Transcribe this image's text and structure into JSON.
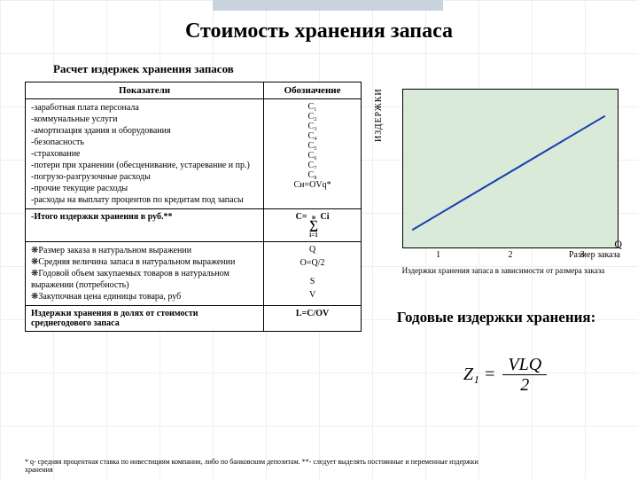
{
  "title": "Стоимость хранения запаса",
  "subtitle": "Расчет издержек хранения запасов",
  "table": {
    "header": {
      "col1": "Показатели",
      "col2": "Обозначение"
    },
    "block1": {
      "items": [
        "-заработная плата персонала",
        "-коммунальные услуги",
        "-амортизация здания и оборудования",
        "-безопасность",
        "-страхование",
        "-потери при хранении (обесценивание, устаревание и пр.)",
        "-погрузо-разгрузочные расходы",
        "-прочие текущие расходы",
        "-расходы на выплату процентов по кредитам под запасы"
      ],
      "codes": [
        "C₁",
        "C₂",
        "C₃",
        "C₄",
        "C₅",
        "C₆",
        "",
        "C₇",
        "C₈",
        "Cн=OVq*"
      ]
    },
    "total_row": {
      "label": "-Итого издержки хранения в руб.**",
      "code_prefix": "C=",
      "sum_top": "n",
      "sum_bot": "i=1",
      "sum_right": "Ci"
    },
    "block2": {
      "rows": [
        {
          "label": "❋Размер заказа в натуральном выражении",
          "code": "Q"
        },
        {
          "label": "❋Средняя величина запаса в натуральном выражении",
          "code": "O=Q/2"
        },
        {
          "label": "❋Годовой объем закупаемых товаров в натуральном выражении (потребность)",
          "code": "S"
        },
        {
          "label": "❋Закупочная цена единицы товара, руб",
          "code": "V"
        }
      ]
    },
    "final_row": {
      "label": "Издержки хранения в долях от стоимости среднегодового запаса",
      "code": "L=C/OV"
    }
  },
  "chart": {
    "ylabel": "ИЗДЕРЖКИ",
    "xticks": [
      "1",
      "2",
      "3"
    ],
    "xlabel_right": "Размер заказа",
    "q_label": "Q",
    "caption": "Издержки хранения запаса в зависимости от размера заказа",
    "line": {
      "x1": 10,
      "y1": 160,
      "x2": 230,
      "y2": 30,
      "stroke": "#1a3db0",
      "width": 2
    },
    "bg": "#d9ead9"
  },
  "right_heading": "Годовые издержки хранения:",
  "formula": {
    "lhs": "Z₁ =",
    "num": "VLQ",
    "den": "2"
  },
  "footnote": "* q- средняя процентная ставка по инвестициям компании, либо по банковским депозитам. **- следует выделять постоянные и переменные издержки хранения"
}
